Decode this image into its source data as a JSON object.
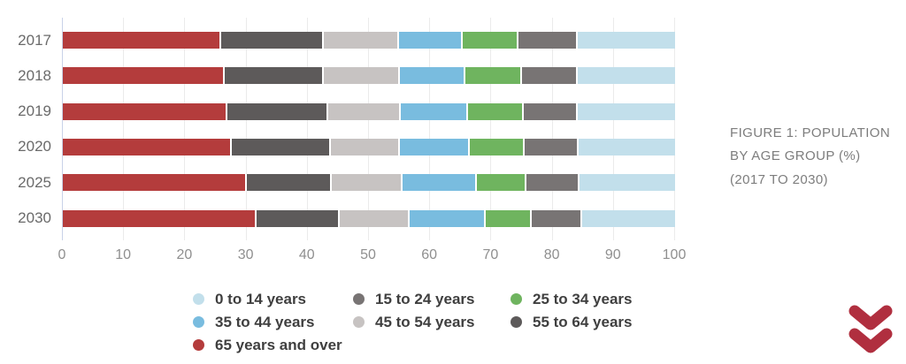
{
  "figure_caption": "FIGURE 1: POPULATION BY AGE GROUP (%) (2017 TO 2030)",
  "colors": {
    "age_0_14": "#c2dfeb",
    "age_15_24": "#787474",
    "age_25_34": "#6fb45f",
    "age_35_44": "#79bcdf",
    "age_45_54": "#c7c3c2",
    "age_55_64": "#5d5a5a",
    "age_65_over": "#b43c3c",
    "gridline": "#ebebeb",
    "axis_line": "#c9d2e8",
    "axis_text": "#8f8f8f",
    "legend_text": "#3f3f3f",
    "caption_text": "#7d7d7d",
    "chevron_red": "#b02f3f"
  },
  "chart_data": {
    "type": "bar",
    "orientation": "horizontal",
    "stacked": true,
    "title": "",
    "xlabel": "",
    "ylabel": "",
    "xlim": [
      0,
      100
    ],
    "grid": true,
    "legend_position": "bottom",
    "x_ticks": [
      0,
      10,
      20,
      30,
      40,
      50,
      60,
      70,
      80,
      90,
      100
    ],
    "categories": [
      "2017",
      "2018",
      "2019",
      "2020",
      "2025",
      "2030"
    ],
    "series": [
      {
        "name": "65 years and over",
        "color": "#b43c3c",
        "values": [
          25.6,
          26.2,
          26.6,
          27.3,
          29.7,
          31.3
        ]
      },
      {
        "name": "55 to 64 years",
        "color": "#5d5a5a",
        "values": [
          16.7,
          16.2,
          16.4,
          16.2,
          13.9,
          13.6
        ]
      },
      {
        "name": "45 to 54 years",
        "color": "#c7c3c2",
        "values": [
          12.3,
          12.3,
          11.9,
          11.3,
          11.6,
          11.5
        ]
      },
      {
        "name": "35 to 44 years",
        "color": "#79bcdf",
        "values": [
          10.4,
          10.8,
          11.0,
          11.4,
          12.1,
          12.4
        ]
      },
      {
        "name": "25 to 34 years",
        "color": "#6fb45f",
        "values": [
          9.2,
          9.2,
          9.1,
          9.0,
          8.1,
          7.5
        ]
      },
      {
        "name": "15 to 24 years",
        "color": "#787474",
        "values": [
          9.6,
          9.1,
          8.8,
          8.7,
          8.7,
          8.2
        ]
      },
      {
        "name": "0 to 14 years",
        "color": "#c2dfeb",
        "values": [
          16.2,
          16.2,
          16.2,
          16.1,
          15.9,
          15.5
        ]
      }
    ]
  },
  "legend": {
    "items": [
      {
        "label": "0 to 14 years",
        "color": "#c2dfeb"
      },
      {
        "label": "15 to 24 years",
        "color": "#787474"
      },
      {
        "label": "25 to 34 years",
        "color": "#6fb45f"
      },
      {
        "label": "35 to 44 years",
        "color": "#79bcdf"
      },
      {
        "label": "45 to 54 years",
        "color": "#c7c3c2"
      },
      {
        "label": "55 to 64 years",
        "color": "#5d5a5a"
      },
      {
        "label": "65 years and over",
        "color": "#b43c3c"
      }
    ]
  },
  "icons": {
    "scroll_down": "double-chevron-down"
  }
}
